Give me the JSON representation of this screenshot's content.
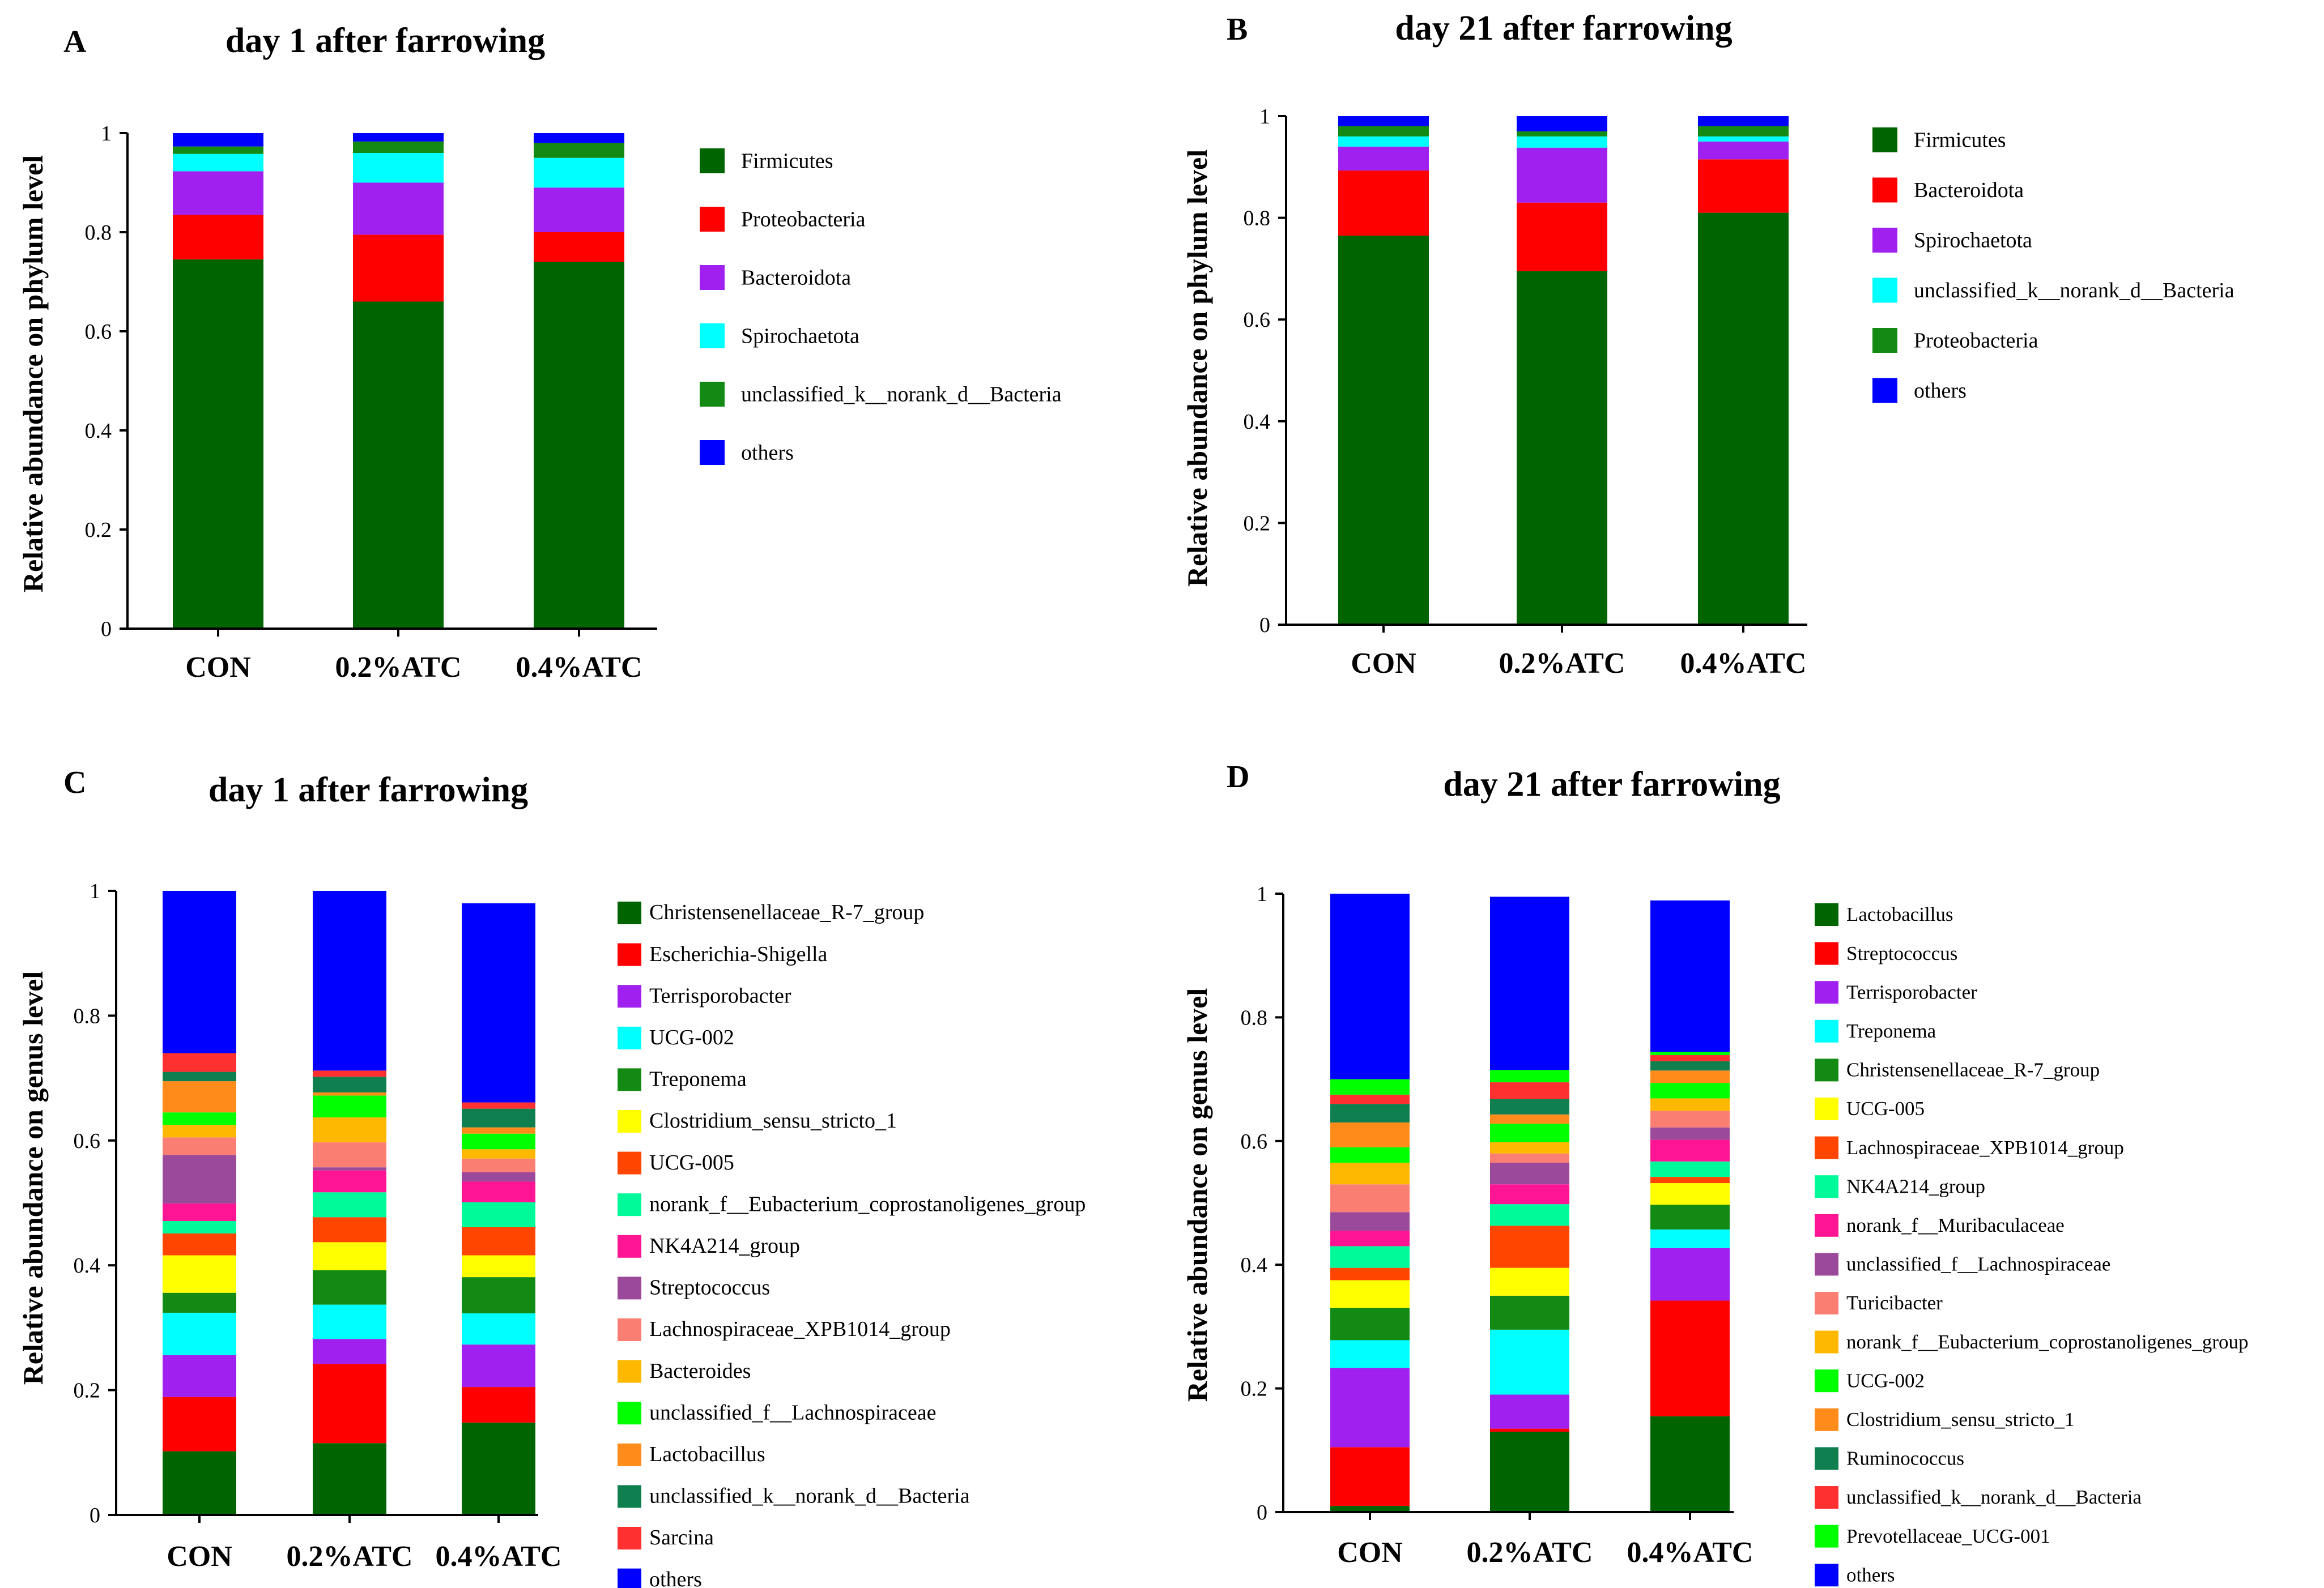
{
  "colors": {
    "dark_green": "#006400",
    "red": "#ff0000",
    "purple": "#a020f0",
    "cyan": "#00ffff",
    "green": "#138a13",
    "blue": "#0000ff",
    "yellow": "#ffff00",
    "orange_red": "#ff4500",
    "spring_green": "#00fa9a",
    "deep_pink": "#ff1493",
    "plum": "#9b4a9b",
    "salmon": "#fa7f72",
    "amber": "#ffb800",
    "lime": "#00ff00",
    "orange": "#ff8c1a",
    "sea_green": "#0f7f4f",
    "tomato": "#ff3030"
  },
  "chart_data": [
    {
      "panel": "A",
      "type": "bar",
      "stacked": true,
      "title": "day 1 after farrowing",
      "ylabel": "Relative abundance on phylum level",
      "xlabel": "",
      "ylim": [
        0,
        1
      ],
      "yticks": [
        "0",
        "0.2",
        "0.4",
        "0.6",
        "0.8",
        "1"
      ],
      "categories": [
        "CON",
        "0.2%ATC",
        "0.4%ATC"
      ],
      "series": [
        {
          "name": "Firmicutes",
          "color": "#006400",
          "values": [
            0.745,
            0.66,
            0.74
          ]
        },
        {
          "name": "Proteobacteria",
          "color": "#ff0000",
          "values": [
            0.09,
            0.135,
            0.06
          ]
        },
        {
          "name": "Bacteroidota",
          "color": "#a020f0",
          "values": [
            0.088,
            0.105,
            0.09
          ]
        },
        {
          "name": "Spirochaetota",
          "color": "#00ffff",
          "values": [
            0.035,
            0.06,
            0.06
          ]
        },
        {
          "name": "unclassified_k__norank_d__Bacteria",
          "color": "#138a13",
          "values": [
            0.015,
            0.023,
            0.03
          ]
        },
        {
          "name": "others",
          "color": "#0000ff",
          "values": [
            0.027,
            0.017,
            0.02
          ]
        }
      ]
    },
    {
      "panel": "B",
      "type": "bar",
      "stacked": true,
      "title": "day 21 after farrowing",
      "ylabel": "Relative abundance on phylum level",
      "xlabel": "",
      "ylim": [
        0,
        1
      ],
      "yticks": [
        "0",
        "0.2",
        "0.4",
        "0.6",
        "0.8",
        "1"
      ],
      "categories": [
        "CON",
        "0.2%ATC",
        "0.4%ATC"
      ],
      "series": [
        {
          "name": "Firmicutes",
          "color": "#006400",
          "values": [
            0.765,
            0.695,
            0.81
          ]
        },
        {
          "name": "Bacteroidota",
          "color": "#ff0000",
          "values": [
            0.128,
            0.135,
            0.105
          ]
        },
        {
          "name": "Spirochaetota",
          "color": "#a020f0",
          "values": [
            0.047,
            0.108,
            0.035
          ]
        },
        {
          "name": "unclassified_k__norank_d__Bacteria",
          "color": "#00ffff",
          "values": [
            0.02,
            0.022,
            0.01
          ]
        },
        {
          "name": "Proteobacteria",
          "color": "#138a13",
          "values": [
            0.02,
            0.01,
            0.02
          ]
        },
        {
          "name": "others",
          "color": "#0000ff",
          "values": [
            0.02,
            0.03,
            0.02
          ]
        }
      ]
    },
    {
      "panel": "C",
      "type": "bar",
      "stacked": true,
      "title": "day 1 after farrowing",
      "ylabel": "Relative abundance on genus level",
      "xlabel": "",
      "ylim": [
        0,
        1
      ],
      "yticks": [
        "0",
        "0.2",
        "0.4",
        "0.6",
        "0.8",
        "1"
      ],
      "categories": [
        "CON",
        "0.2%ATC",
        "0.4%ATC"
      ],
      "series": [
        {
          "name": "Christensenellaceae_R-7_group",
          "color": "#006400",
          "values": [
            0.102,
            0.115,
            0.148
          ]
        },
        {
          "name": "Escherichia-Shigella",
          "color": "#ff0000",
          "values": [
            0.087,
            0.127,
            0.057
          ]
        },
        {
          "name": "Terrisporobacter",
          "color": "#a020f0",
          "values": [
            0.067,
            0.04,
            0.068
          ]
        },
        {
          "name": "UCG-002",
          "color": "#00ffff",
          "values": [
            0.068,
            0.055,
            0.05
          ]
        },
        {
          "name": "Treponema",
          "color": "#138a13",
          "values": [
            0.032,
            0.055,
            0.058
          ]
        },
        {
          "name": "Clostridium_sensu_stricto_1",
          "color": "#ffff00",
          "values": [
            0.06,
            0.045,
            0.035
          ]
        },
        {
          "name": "UCG-005",
          "color": "#ff4500",
          "values": [
            0.035,
            0.04,
            0.045
          ]
        },
        {
          "name": "norank_f__Eubacterium_coprostanoligenes_group",
          "color": "#00fa9a",
          "values": [
            0.02,
            0.04,
            0.04
          ]
        },
        {
          "name": "NK4A214_group",
          "color": "#ff1493",
          "values": [
            0.028,
            0.035,
            0.033
          ]
        },
        {
          "name": "Streptococcus",
          "color": "#9b4a9b",
          "values": [
            0.078,
            0.005,
            0.015
          ]
        },
        {
          "name": "Lachnospiraceae_XPB1014_group",
          "color": "#fa7f72",
          "values": [
            0.028,
            0.04,
            0.022
          ]
        },
        {
          "name": "Bacteroides",
          "color": "#ffb800",
          "values": [
            0.02,
            0.04,
            0.015
          ]
        },
        {
          "name": "unclassified_f__Lachnospiraceae",
          "color": "#00ff00",
          "values": [
            0.02,
            0.035,
            0.025
          ]
        },
        {
          "name": "Lactobacillus",
          "color": "#ff8c1a",
          "values": [
            0.05,
            0.005,
            0.01
          ]
        },
        {
          "name": "unclassified_k__norank_d__Bacteria",
          "color": "#0f7f4f",
          "values": [
            0.015,
            0.025,
            0.03
          ]
        },
        {
          "name": "Sarcina",
          "color": "#ff3030",
          "values": [
            0.03,
            0.01,
            0.01
          ]
        },
        {
          "name": "others",
          "color": "#0000ff",
          "values": [
            0.26,
            0.288,
            0.319
          ]
        }
      ]
    },
    {
      "panel": "D",
      "type": "bar",
      "stacked": true,
      "title": "day 21 after farrowing",
      "ylabel": "Relative abundance on genus level",
      "xlabel": "",
      "ylim": [
        0,
        1
      ],
      "yticks": [
        "0",
        "0.2",
        "0.4",
        "0.6",
        "0.8",
        "1"
      ],
      "categories": [
        "CON",
        "0.2%ATC",
        "0.4%ATC"
      ],
      "series": [
        {
          "name": "Lactobacillus",
          "color": "#006400",
          "values": [
            0.01,
            0.13,
            0.155
          ]
        },
        {
          "name": "Streptococcus",
          "color": "#ff0000",
          "values": [
            0.095,
            0.005,
            0.187
          ]
        },
        {
          "name": "Terrisporobacter",
          "color": "#a020f0",
          "values": [
            0.128,
            0.055,
            0.085
          ]
        },
        {
          "name": "Treponema",
          "color": "#00ffff",
          "values": [
            0.045,
            0.105,
            0.03
          ]
        },
        {
          "name": "Christensenellaceae_R-7_group",
          "color": "#138a13",
          "values": [
            0.052,
            0.055,
            0.04
          ]
        },
        {
          "name": "UCG-005",
          "color": "#ffff00",
          "values": [
            0.045,
            0.045,
            0.035
          ]
        },
        {
          "name": "Lachnospiraceae_XPB1014_group",
          "color": "#ff4500",
          "values": [
            0.02,
            0.068,
            0.01
          ]
        },
        {
          "name": "NK4A214_group",
          "color": "#00fa9a",
          "values": [
            0.035,
            0.035,
            0.025
          ]
        },
        {
          "name": "norank_f__Muribaculaceae",
          "color": "#ff1493",
          "values": [
            0.025,
            0.032,
            0.035
          ]
        },
        {
          "name": "unclassified_f__Lachnospiraceae",
          "color": "#9b4a9b",
          "values": [
            0.03,
            0.035,
            0.02
          ]
        },
        {
          "name": "Turicibacter",
          "color": "#fa7f72",
          "values": [
            0.045,
            0.015,
            0.027
          ]
        },
        {
          "name": "norank_f__Eubacterium_coprostanoligenes_group",
          "color": "#ffb800",
          "values": [
            0.035,
            0.018,
            0.02
          ]
        },
        {
          "name": "UCG-002",
          "color": "#00ff00",
          "values": [
            0.025,
            0.03,
            0.025
          ]
        },
        {
          "name": "Clostridium_sensu_stricto_1",
          "color": "#ff8c1a",
          "values": [
            0.04,
            0.015,
            0.02
          ]
        },
        {
          "name": "Ruminococcus",
          "color": "#0f7f4f",
          "values": [
            0.03,
            0.025,
            0.015
          ]
        },
        {
          "name": "unclassified_k__norank_d__Bacteria",
          "color": "#ff3030",
          "values": [
            0.015,
            0.027,
            0.01
          ]
        },
        {
          "name": "Prevotellaceae_UCG-001",
          "color": "#00ff00",
          "values": [
            0.025,
            0.02,
            0.005
          ]
        },
        {
          "name": "others",
          "color": "#0000ff",
          "values": [
            0.3,
            0.28,
            0.245
          ]
        }
      ]
    }
  ]
}
